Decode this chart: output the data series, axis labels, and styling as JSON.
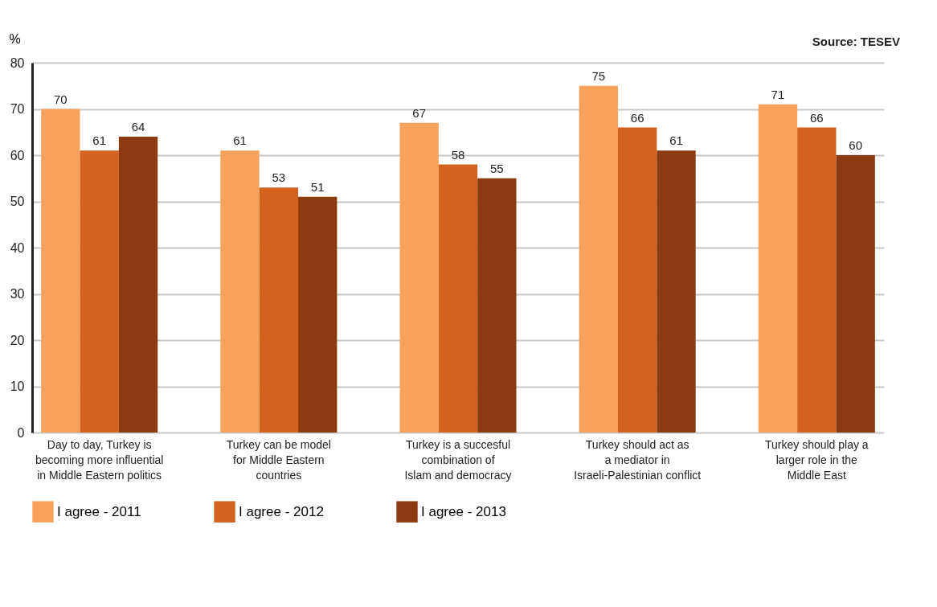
{
  "chart_data": {
    "type": "bar",
    "categories": [
      "Day to day, Turkey is\nbecoming more influential\nin Middle Eastern politics",
      "Turkey can be model\nfor Middle Eastern\ncountries",
      "Turkey is a succesful\ncombination of\nIslam and democracy",
      "Turkey should act as\na mediator in\nIsraeli-Palestinian conflict",
      "Turkey should play a\nlarger role in the\nMiddle East"
    ],
    "series": [
      {
        "name": "I agree - 2011",
        "color": "#f7a25c",
        "values": [
          70,
          61,
          67,
          75,
          71
        ]
      },
      {
        "name": "I agree - 2012",
        "color": "#d2621e",
        "values": [
          61,
          53,
          58,
          66,
          66
        ]
      },
      {
        "name": "I agree - 2013",
        "color": "#8c3b10",
        "values": [
          64,
          51,
          55,
          61,
          60
        ]
      }
    ],
    "ylabel": "%",
    "annotations": [
      "Source: TESEV"
    ],
    "ylim": [
      0,
      80
    ],
    "yticks": [
      0,
      10,
      20,
      30,
      40,
      50,
      60,
      70,
      80
    ],
    "grid": "y",
    "legend": "bottom",
    "data_labels": true
  }
}
